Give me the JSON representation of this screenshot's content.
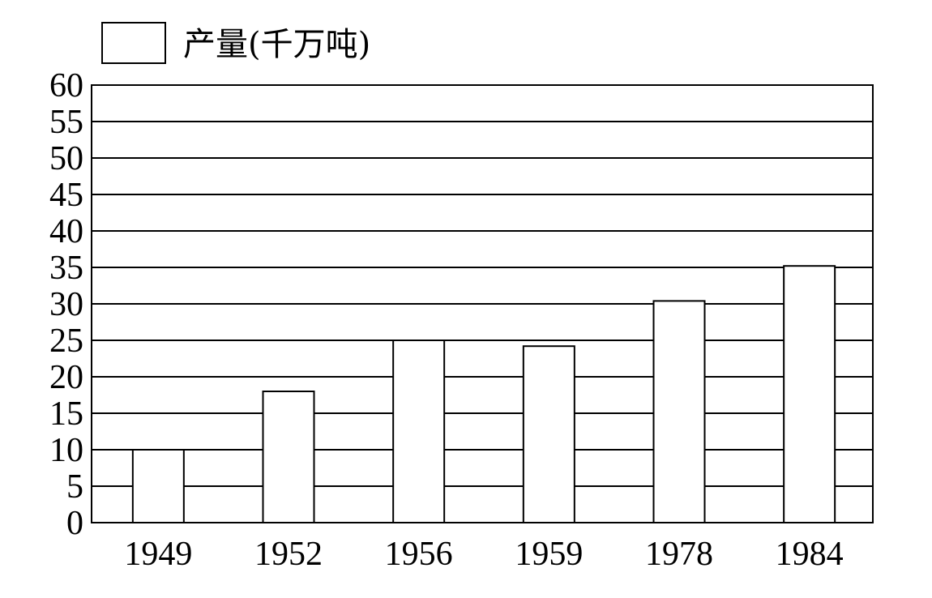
{
  "chart_data": {
    "type": "bar",
    "categories": [
      "1949",
      "1952",
      "1956",
      "1959",
      "1978",
      "1984"
    ],
    "series": [
      {
        "name": "产量(千万吨)",
        "values": [
          10,
          18,
          25,
          24.2,
          30.4,
          35.2
        ]
      }
    ],
    "title": "",
    "xlabel": "",
    "ylabel": "",
    "ylim": [
      0,
      60
    ],
    "yticks": [
      0,
      5,
      10,
      15,
      20,
      25,
      30,
      35,
      40,
      45,
      50,
      55,
      60
    ],
    "grid": true,
    "legend_position": "top-left",
    "colors": {
      "bar_fill": "#ffffff",
      "stroke": "#000000",
      "background": "#ffffff"
    }
  }
}
